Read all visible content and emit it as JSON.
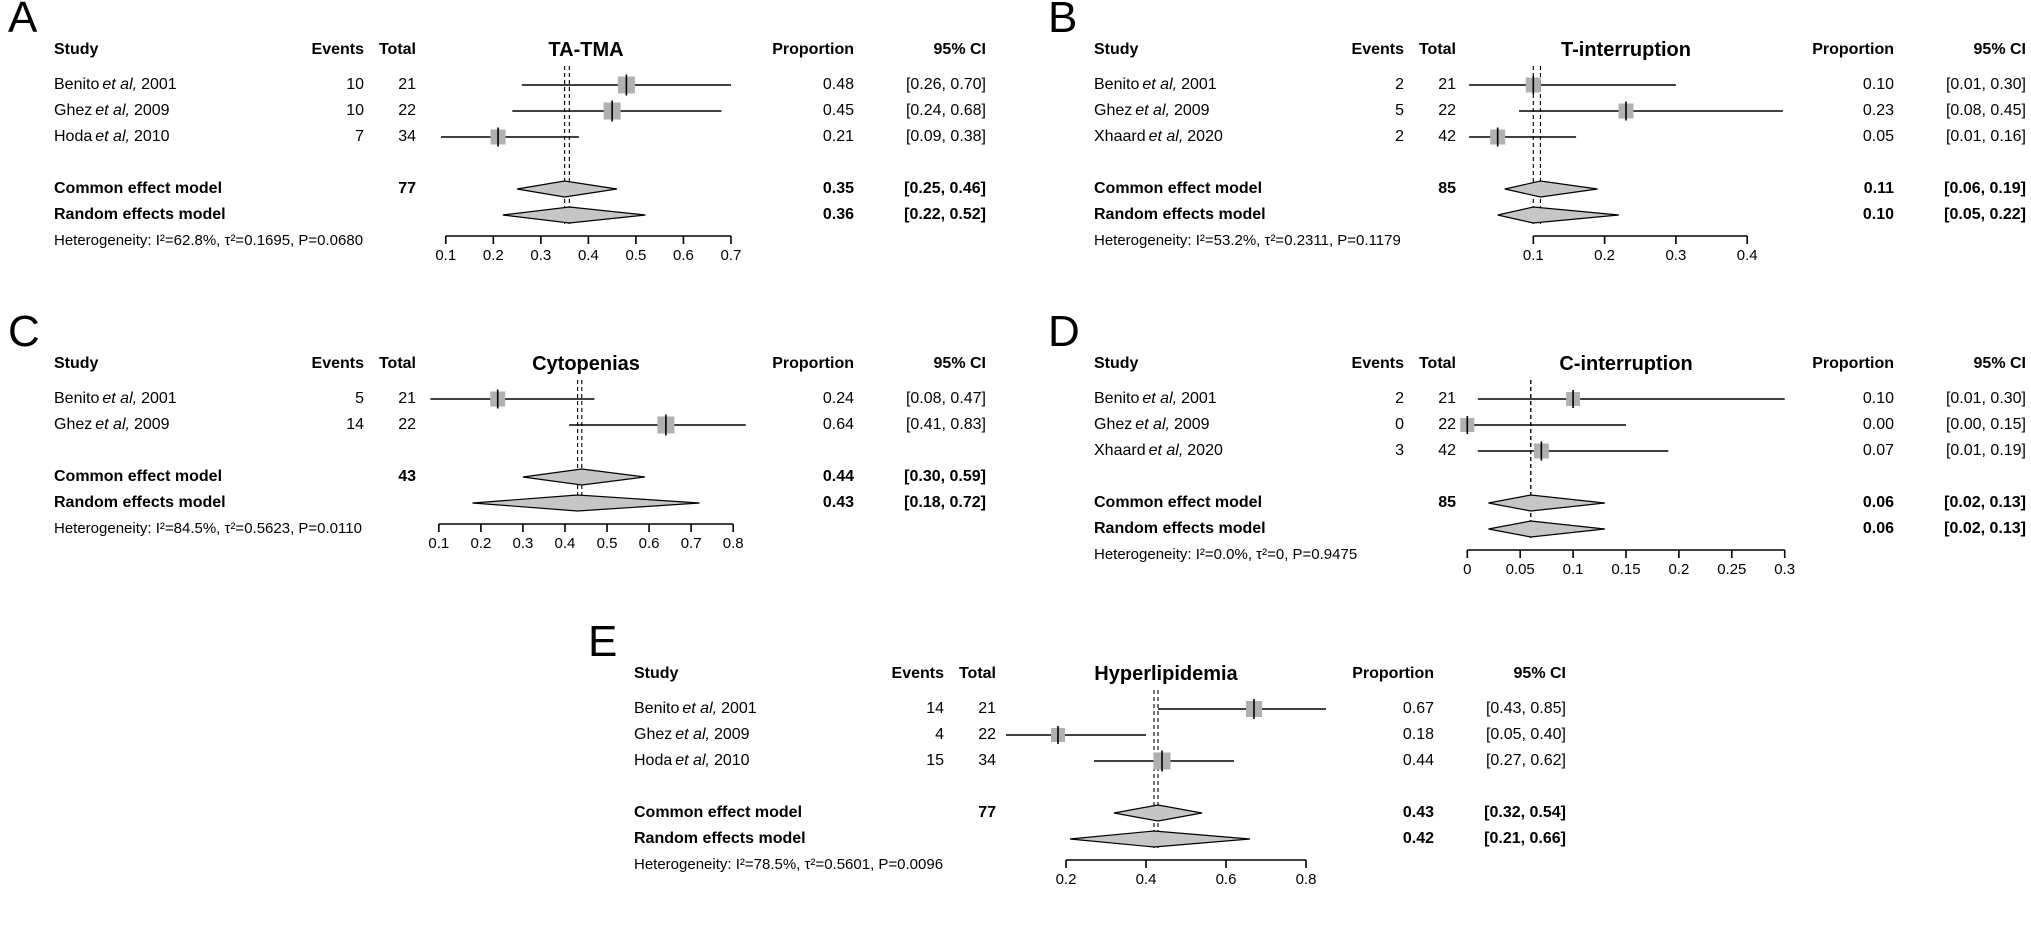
{
  "colors": {
    "marker": "#b0b0b0",
    "diamond": "#c6c6c6",
    "line": "#000000"
  },
  "chart_data": [
    {
      "type": "forest",
      "label": "A",
      "title": "TA-TMA",
      "headers": {
        "study": "Study",
        "events": "Events",
        "total": "Total",
        "proportion": "Proportion",
        "ci": "95% CI"
      },
      "studies": [
        {
          "author": "Benito",
          "etal": "et al,",
          "year": "2001",
          "events": "10",
          "total": "21",
          "est": 0.48,
          "lo": 0.26,
          "hi": 0.7,
          "proportion": "0.48",
          "ci": "[0.26, 0.70]",
          "marker": 17
        },
        {
          "author": "Ghez",
          "etal": "et al,",
          "year": "2009",
          "events": "10",
          "total": "22",
          "est": 0.45,
          "lo": 0.24,
          "hi": 0.68,
          "proportion": "0.45",
          "ci": "[0.24, 0.68]",
          "marker": 17
        },
        {
          "author": "Hoda",
          "etal": "et al,",
          "year": "2010",
          "events": "7",
          "total": "34",
          "est": 0.21,
          "lo": 0.09,
          "hi": 0.38,
          "proportion": "0.21",
          "ci": "[0.09, 0.38]",
          "marker": 15
        }
      ],
      "common": {
        "label": "Common effect model",
        "total": "77",
        "est": 0.35,
        "lo": 0.25,
        "hi": 0.46,
        "proportion": "0.35",
        "ci": "[0.25, 0.46]"
      },
      "random": {
        "label": "Random effects model",
        "est": 0.36,
        "lo": 0.22,
        "hi": 0.52,
        "proportion": "0.36",
        "ci": "[0.22, 0.52]"
      },
      "heterogeneity": "Heterogeneity: I²=62.8%, τ²=0.1695, P=0.0680",
      "axis": {
        "plot_range": [
          0.05,
          0.74
        ],
        "ticks": [
          0.1,
          0.2,
          0.3,
          0.4,
          0.5,
          0.6,
          0.7
        ],
        "tick_labels": [
          "0.1",
          "0.2",
          "0.3",
          "0.4",
          "0.5",
          "0.6",
          "0.7"
        ]
      }
    },
    {
      "type": "forest",
      "label": "B",
      "title": "T-interruption",
      "headers": {
        "study": "Study",
        "events": "Events",
        "total": "Total",
        "proportion": "Proportion",
        "ci": "95% CI"
      },
      "studies": [
        {
          "author": "Benito",
          "etal": "et al,",
          "year": "2001",
          "events": "2",
          "total": "21",
          "est": 0.1,
          "lo": 0.01,
          "hi": 0.3,
          "proportion": "0.10",
          "ci": "[0.01, 0.30]",
          "marker": 15
        },
        {
          "author": "Ghez",
          "etal": "et al,",
          "year": "2009",
          "events": "5",
          "total": "22",
          "est": 0.23,
          "lo": 0.08,
          "hi": 0.45,
          "proportion": "0.23",
          "ci": "[0.08, 0.45]",
          "marker": 15
        },
        {
          "author": "Xhaard",
          "etal": "et al,",
          "year": "2020",
          "events": "2",
          "total": "42",
          "est": 0.05,
          "lo": 0.01,
          "hi": 0.16,
          "proportion": "0.05",
          "ci": "[0.01, 0.16]",
          "marker": 15
        }
      ],
      "common": {
        "label": "Common effect model",
        "total": "85",
        "est": 0.11,
        "lo": 0.06,
        "hi": 0.19,
        "proportion": "0.11",
        "ci": "[0.06, 0.19]"
      },
      "random": {
        "label": "Random effects model",
        "est": 0.1,
        "lo": 0.05,
        "hi": 0.22,
        "proportion": "0.10",
        "ci": "[0.05, 0.22]"
      },
      "heterogeneity": "Heterogeneity: I²=53.2%, τ²=0.2311, P=0.1179",
      "axis": {
        "plot_range": [
          0.0,
          0.46
        ],
        "ticks": [
          0.1,
          0.2,
          0.3,
          0.4
        ],
        "tick_labels": [
          "0.1",
          "0.2",
          "0.3",
          "0.4"
        ]
      }
    },
    {
      "type": "forest",
      "label": "C",
      "title": "Cytopenias",
      "headers": {
        "study": "Study",
        "events": "Events",
        "total": "Total",
        "proportion": "Proportion",
        "ci": "95% CI"
      },
      "studies": [
        {
          "author": "Benito",
          "etal": "et al,",
          "year": "2001",
          "events": "5",
          "total": "21",
          "est": 0.24,
          "lo": 0.08,
          "hi": 0.47,
          "proportion": "0.24",
          "ci": "[0.08, 0.47]",
          "marker": 15
        },
        {
          "author": "Ghez",
          "etal": "et al,",
          "year": "2009",
          "events": "14",
          "total": "22",
          "est": 0.64,
          "lo": 0.41,
          "hi": 0.83,
          "proportion": "0.64",
          "ci": "[0.41, 0.83]",
          "marker": 17
        }
      ],
      "common": {
        "label": "Common effect model",
        "total": "43",
        "est": 0.44,
        "lo": 0.3,
        "hi": 0.59,
        "proportion": "0.44",
        "ci": "[0.30, 0.59]"
      },
      "random": {
        "label": "Random effects model",
        "est": 0.43,
        "lo": 0.18,
        "hi": 0.72,
        "proportion": "0.43",
        "ci": "[0.18, 0.72]"
      },
      "heterogeneity": "Heterogeneity: I²=84.5%, τ²=0.5623, P=0.0110",
      "axis": {
        "plot_range": [
          0.06,
          0.84
        ],
        "ticks": [
          0.1,
          0.2,
          0.3,
          0.4,
          0.5,
          0.6,
          0.7,
          0.8
        ],
        "tick_labels": [
          "0.1",
          "0.2",
          "0.3",
          "0.4",
          "0.5",
          "0.6",
          "0.7",
          "0.8"
        ]
      }
    },
    {
      "type": "forest",
      "label": "D",
      "title": "C-interruption",
      "headers": {
        "study": "Study",
        "events": "Events",
        "total": "Total",
        "proportion": "Proportion",
        "ci": "95% CI"
      },
      "studies": [
        {
          "author": "Benito",
          "etal": "et al,",
          "year": "2001",
          "events": "2",
          "total": "21",
          "est": 0.1,
          "lo": 0.01,
          "hi": 0.3,
          "proportion": "0.10",
          "ci": "[0.01, 0.30]",
          "marker": 14
        },
        {
          "author": "Ghez",
          "etal": "et al,",
          "year": "2009",
          "events": "0",
          "total": "22",
          "est": 0.0,
          "lo": 0.0,
          "hi": 0.15,
          "proportion": "0.00",
          "ci": "[0.00, 0.15]",
          "marker": 14
        },
        {
          "author": "Xhaard",
          "etal": "et al,",
          "year": "2020",
          "events": "3",
          "total": "42",
          "est": 0.07,
          "lo": 0.01,
          "hi": 0.19,
          "proportion": "0.07",
          "ci": "[0.01, 0.19]",
          "marker": 15
        }
      ],
      "common": {
        "label": "Common effect model",
        "total": "85",
        "est": 0.06,
        "lo": 0.02,
        "hi": 0.13,
        "proportion": "0.06",
        "ci": "[0.02, 0.13]"
      },
      "random": {
        "label": "Random effects model",
        "est": 0.06,
        "lo": 0.02,
        "hi": 0.13,
        "proportion": "0.06",
        "ci": "[0.02, 0.13]"
      },
      "heterogeneity": "Heterogeneity: I²=0.0%, τ²=0, P=0.9475",
      "axis": {
        "plot_range": [
          -0.005,
          0.305
        ],
        "ticks": [
          0,
          0.05,
          0.1,
          0.15,
          0.2,
          0.25,
          0.3
        ],
        "tick_labels": [
          "0",
          "0.05",
          "0.1",
          "0.15",
          "0.2",
          "0.25",
          "0.3"
        ]
      }
    },
    {
      "type": "forest",
      "label": "E",
      "title": "Hyperlipidemia",
      "headers": {
        "study": "Study",
        "events": "Events",
        "total": "Total",
        "proportion": "Proportion",
        "ci": "95% CI"
      },
      "studies": [
        {
          "author": "Benito",
          "etal": "et al,",
          "year": "2001",
          "events": "14",
          "total": "21",
          "est": 0.67,
          "lo": 0.43,
          "hi": 0.85,
          "proportion": "0.67",
          "ci": "[0.43, 0.85]",
          "marker": 16
        },
        {
          "author": "Ghez",
          "etal": "et al,",
          "year": "2009",
          "events": "4",
          "total": "22",
          "est": 0.18,
          "lo": 0.05,
          "hi": 0.4,
          "proportion": "0.18",
          "ci": "[0.05, 0.40]",
          "marker": 14
        },
        {
          "author": "Hoda",
          "etal": "et al,",
          "year": "2010",
          "events": "15",
          "total": "34",
          "est": 0.44,
          "lo": 0.27,
          "hi": 0.62,
          "proportion": "0.44",
          "ci": "[0.27, 0.62]",
          "marker": 17
        }
      ],
      "common": {
        "label": "Common effect model",
        "total": "77",
        "est": 0.43,
        "lo": 0.32,
        "hi": 0.54,
        "proportion": "0.43",
        "ci": "[0.32, 0.54]"
      },
      "random": {
        "label": "Random effects model",
        "est": 0.42,
        "lo": 0.21,
        "hi": 0.66,
        "proportion": "0.42",
        "ci": "[0.21, 0.66]"
      },
      "heterogeneity": "Heterogeneity: I²=78.5%, τ²=0.5601, P=0.0096",
      "axis": {
        "plot_range": [
          0.04,
          0.86
        ],
        "ticks": [
          0.2,
          0.4,
          0.6,
          0.8
        ],
        "tick_labels": [
          "0.2",
          "0.4",
          "0.6",
          "0.8"
        ]
      }
    }
  ]
}
